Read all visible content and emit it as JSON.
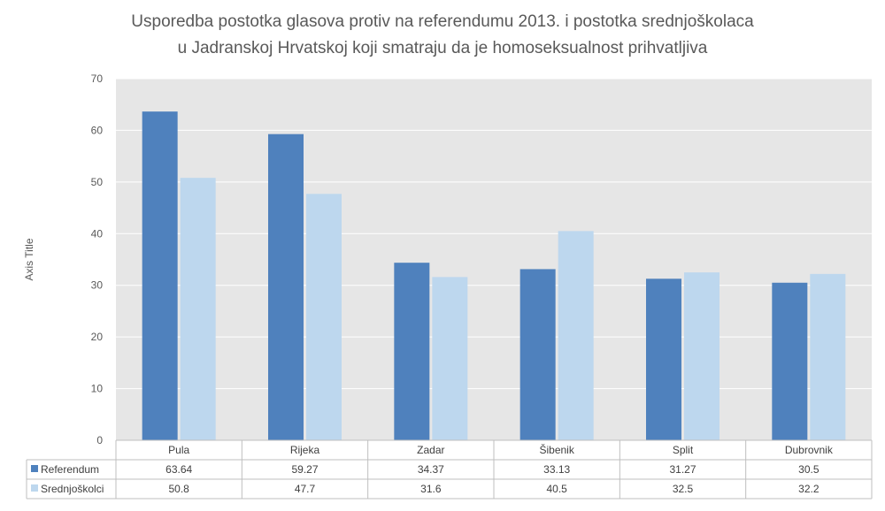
{
  "chart_data": {
    "type": "bar",
    "title_lines": [
      "Usporedba postotka glasova protiv na referendumu 2013. i postotka srednjoškolaca",
      "u Jadranskoj Hrvatskoj koji smatraju da je homoseksualnost prihvatljiva"
    ],
    "ylabel": "Axis Title",
    "xlabel": "",
    "ylim": [
      0,
      70
    ],
    "yticks": [
      0,
      10,
      20,
      30,
      40,
      50,
      60,
      70
    ],
    "grid": true,
    "legend": "data-table",
    "categories": [
      "Pula",
      "Rijeka",
      "Zadar",
      "Šibenik",
      "Split",
      "Dubrovnik"
    ],
    "series": [
      {
        "name": "Referendum",
        "color": "#4f81bd",
        "values": [
          63.64,
          59.27,
          34.37,
          33.13,
          31.27,
          30.5
        ],
        "labels": [
          "63.64",
          "59.27",
          "34.37",
          "33.13",
          "31.27",
          "30.5"
        ]
      },
      {
        "name": "Srednjoškolci",
        "color": "#bdd7ee",
        "values": [
          50.8,
          47.7,
          31.6,
          40.5,
          32.5,
          32.2
        ],
        "labels": [
          "50.8",
          "47.7",
          "31.6",
          "40.5",
          "32.5",
          "32.2"
        ]
      }
    ]
  }
}
